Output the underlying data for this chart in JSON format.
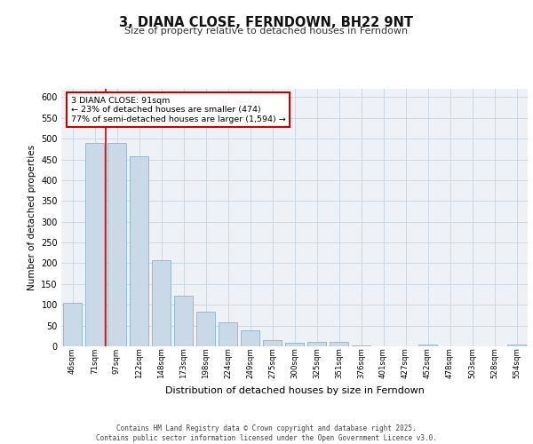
{
  "title": "3, DIANA CLOSE, FERNDOWN, BH22 9NT",
  "subtitle": "Size of property relative to detached houses in Ferndown",
  "xlabel": "Distribution of detached houses by size in Ferndown",
  "ylabel": "Number of detached properties",
  "categories": [
    "46sqm",
    "71sqm",
    "97sqm",
    "122sqm",
    "148sqm",
    "173sqm",
    "198sqm",
    "224sqm",
    "249sqm",
    "275sqm",
    "300sqm",
    "325sqm",
    "351sqm",
    "376sqm",
    "401sqm",
    "427sqm",
    "452sqm",
    "478sqm",
    "503sqm",
    "528sqm",
    "554sqm"
  ],
  "values": [
    105,
    490,
    490,
    457,
    207,
    122,
    83,
    57,
    38,
    14,
    9,
    11,
    11,
    3,
    0,
    0,
    5,
    0,
    0,
    0,
    5
  ],
  "bar_color": "#c9d9e8",
  "bar_edge_color": "#7aaac8",
  "grid_color": "#c8d4e0",
  "background_color": "#eef2f7",
  "annotation_text": "3 DIANA CLOSE: 91sqm\n← 23% of detached houses are smaller (474)\n77% of semi-detached houses are larger (1,594) →",
  "vline_x": 1.5,
  "annotation_box_color": "#ffffff",
  "annotation_box_edge": "#cc0000",
  "footer": "Contains HM Land Registry data © Crown copyright and database right 2025.\nContains public sector information licensed under the Open Government Licence v3.0.",
  "ylim": [
    0,
    620
  ],
  "yticks": [
    0,
    50,
    100,
    150,
    200,
    250,
    300,
    350,
    400,
    450,
    500,
    550,
    600
  ]
}
